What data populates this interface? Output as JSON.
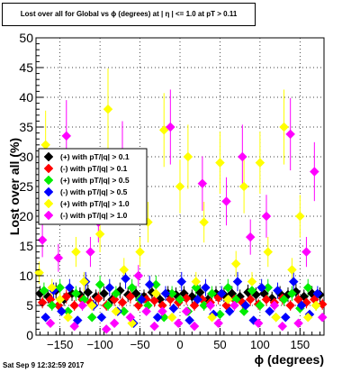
{
  "chart_data": {
    "type": "scatter",
    "title": "Lost over all for Global vs ϕ (degrees) at | η | <= 1.0 at pT > 0.11",
    "xlabel": "ϕ (degrees)",
    "ylabel": "Lost over all (%)",
    "xlim": [
      -180,
      180
    ],
    "ylim": [
      0,
      50
    ],
    "x_ticks": [
      -150,
      -100,
      -50,
      0,
      50,
      100,
      150
    ],
    "x_tick_labels": [
      "−150",
      "−100",
      "−50",
      "0",
      "50",
      "100",
      "150"
    ],
    "y_ticks": [
      0,
      5,
      10,
      15,
      20,
      25,
      30,
      35,
      40,
      45,
      50
    ],
    "grid": true,
    "legend_position": "left",
    "series": [
      {
        "name": "(+) with pT/|q| > 0.1",
        "color": "#000000",
        "x": [
          -175,
          -165,
          -155,
          -145,
          -135,
          -125,
          -115,
          -105,
          -95,
          -85,
          -75,
          -65,
          -55,
          -45,
          -35,
          -25,
          -15,
          -5,
          5,
          15,
          25,
          35,
          45,
          55,
          65,
          75,
          85,
          95,
          105,
          115,
          125,
          135,
          145,
          155,
          165,
          175
        ],
        "y": [
          7,
          6.5,
          7.5,
          6,
          7,
          6.8,
          7.2,
          6.5,
          7,
          6,
          7.5,
          6.8,
          7,
          6.5,
          7.2,
          6,
          7,
          6.8,
          7,
          6.5,
          7.2,
          6,
          7,
          6.8,
          7,
          6.5,
          7.2,
          6.8,
          7,
          6.2,
          7,
          6.8,
          7.3,
          6.5,
          7,
          6.8
        ]
      },
      {
        "name": "(-) with pT/|q| > 0.1",
        "color": "#ff0000",
        "x": [
          -172,
          -162,
          -152,
          -142,
          -132,
          -122,
          -112,
          -102,
          -92,
          -82,
          -72,
          -62,
          -52,
          -42,
          -32,
          -22,
          -12,
          -2,
          8,
          18,
          28,
          38,
          48,
          58,
          68,
          78,
          88,
          98,
          108,
          118,
          128,
          138,
          148,
          158,
          168,
          178
        ],
        "y": [
          5.5,
          6,
          5,
          6.5,
          5,
          6,
          5.5,
          6.2,
          5,
          6,
          5.5,
          6.5,
          5,
          6,
          5.8,
          5,
          6,
          5.5,
          6.2,
          5,
          6,
          5.5,
          6.3,
          5,
          6,
          5.5,
          6,
          5.2,
          6,
          5.5,
          6.2,
          5,
          6,
          5.5,
          6,
          5.2
        ]
      },
      {
        "name": "(+) with pT/|q| > 0.5",
        "color": "#00ee00",
        "x": [
          -170,
          -160,
          -150,
          -140,
          -130,
          -120,
          -110,
          -100,
          -90,
          -80,
          -70,
          -60,
          -50,
          -40,
          -30,
          -20,
          -10,
          0,
          10,
          20,
          30,
          40,
          50,
          60,
          70,
          80,
          90,
          100,
          110,
          120,
          130,
          140,
          150,
          160,
          170
        ],
        "y": [
          7.5,
          5,
          8,
          4,
          7,
          6,
          3,
          8.5,
          5,
          7,
          4,
          8,
          6,
          5,
          8.5,
          3,
          7,
          6,
          4,
          8,
          5,
          7,
          3.5,
          8,
          6,
          4,
          7.5,
          5,
          8,
          3,
          6,
          7,
          4.5,
          8,
          5
        ]
      },
      {
        "name": "(-) with pT/|q| > 0.5",
        "color": "#0000ff",
        "x": [
          -168,
          -158,
          -148,
          -138,
          -128,
          -118,
          -108,
          -98,
          -88,
          -78,
          -68,
          -58,
          -48,
          -38,
          -28,
          -18,
          -8,
          2,
          12,
          22,
          32,
          42,
          52,
          62,
          72,
          82,
          92,
          102,
          112,
          122,
          132,
          142,
          152,
          162,
          172
        ],
        "y": [
          3,
          7.5,
          4,
          8,
          2.5,
          9,
          5,
          3,
          8,
          4,
          9.5,
          2,
          6,
          8.5,
          3,
          7,
          4.5,
          9,
          2.5,
          6,
          8,
          3.5,
          7,
          4,
          9,
          5,
          2.5,
          8,
          4,
          7.5,
          3,
          9,
          5,
          3.5,
          7
        ]
      },
      {
        "name": "(+) with pT/|q| > 1.0",
        "color": "#ffff00",
        "x": [
          -176,
          -168,
          -160,
          -150,
          -140,
          -130,
          -120,
          -110,
          -100,
          -90,
          -80,
          -70,
          -60,
          -50,
          -40,
          -30,
          -20,
          -10,
          0,
          10,
          20,
          30,
          40,
          50,
          60,
          70,
          80,
          90,
          100,
          110,
          120,
          130,
          140,
          150,
          160,
          170
        ],
        "y": [
          10.5,
          32,
          8,
          6,
          3,
          14,
          9,
          5,
          17,
          38,
          4,
          11,
          2,
          14,
          19,
          7,
          34.5,
          3,
          25,
          30,
          9,
          19,
          3,
          29,
          6,
          12,
          25,
          9,
          29,
          14,
          3,
          35,
          11,
          20,
          3,
          5
        ]
      },
      {
        "name": "(-) with pT/|q| > 1.0",
        "color": "#ff00ff",
        "x": [
          -172,
          -162,
          -152,
          -142,
          -132,
          -122,
          -112,
          -102,
          -92,
          -82,
          -72,
          -62,
          -52,
          -42,
          -32,
          -22,
          -12,
          -2,
          8,
          18,
          28,
          38,
          48,
          58,
          68,
          78,
          88,
          98,
          108,
          118,
          128,
          138,
          148,
          158,
          168,
          178
        ],
        "y": [
          16,
          2,
          13,
          33.5,
          1.5,
          5,
          14,
          19,
          1,
          2,
          30.5,
          3,
          10,
          4,
          1.5,
          4,
          35,
          2,
          4,
          1.5,
          25.5,
          5,
          2,
          22.5,
          5,
          30,
          16.5,
          2,
          20,
          5,
          1.5,
          33.8,
          2,
          14,
          27.5,
          3
        ]
      }
    ]
  },
  "footer": {
    "timestamp": "Sat Sep  9 12:32:59 2017"
  }
}
